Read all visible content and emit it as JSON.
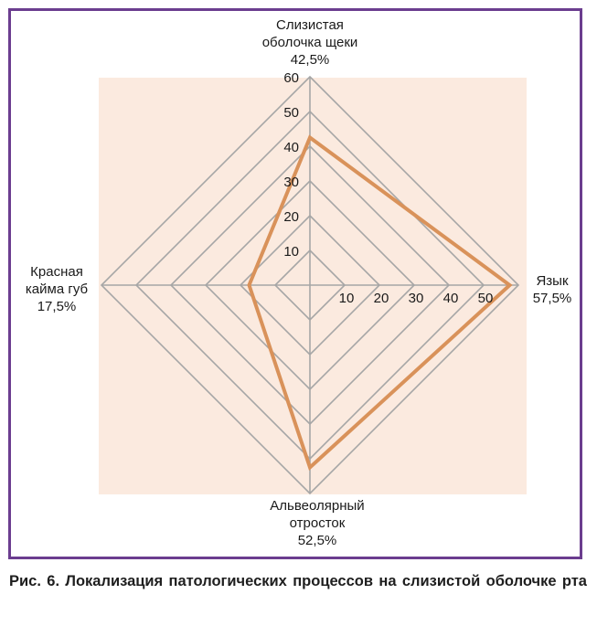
{
  "chart_data": {
    "type": "radar",
    "scale_max": 60,
    "scale_step": 10,
    "axes": [
      {
        "label_lines": [
          "Слизистая",
          "оболочка щеки",
          "42,5%"
        ],
        "value": 42.5
      },
      {
        "label_lines": [
          "Язык",
          "57,5%"
        ],
        "value": 57.5
      },
      {
        "label_lines": [
          "Альвеолярный",
          "отросток",
          "52,5%"
        ],
        "value": 52.5
      },
      {
        "label_lines": [
          "Красная",
          "кайма губ",
          "17,5%"
        ],
        "value": 17.5
      }
    ],
    "vertical_ticks": [
      "10",
      "20",
      "30",
      "40",
      "50",
      "60"
    ],
    "horizontal_ticks": [
      "10",
      "20",
      "30",
      "40",
      "50"
    ],
    "colors": {
      "plot_background": "#fbeadf",
      "grid": "#a6a6a6",
      "series": "#d9925a",
      "frame": "#6b3d8f"
    }
  },
  "caption": "Рис. 6. Локализация патологических процессов на слизистой оболочке рта"
}
